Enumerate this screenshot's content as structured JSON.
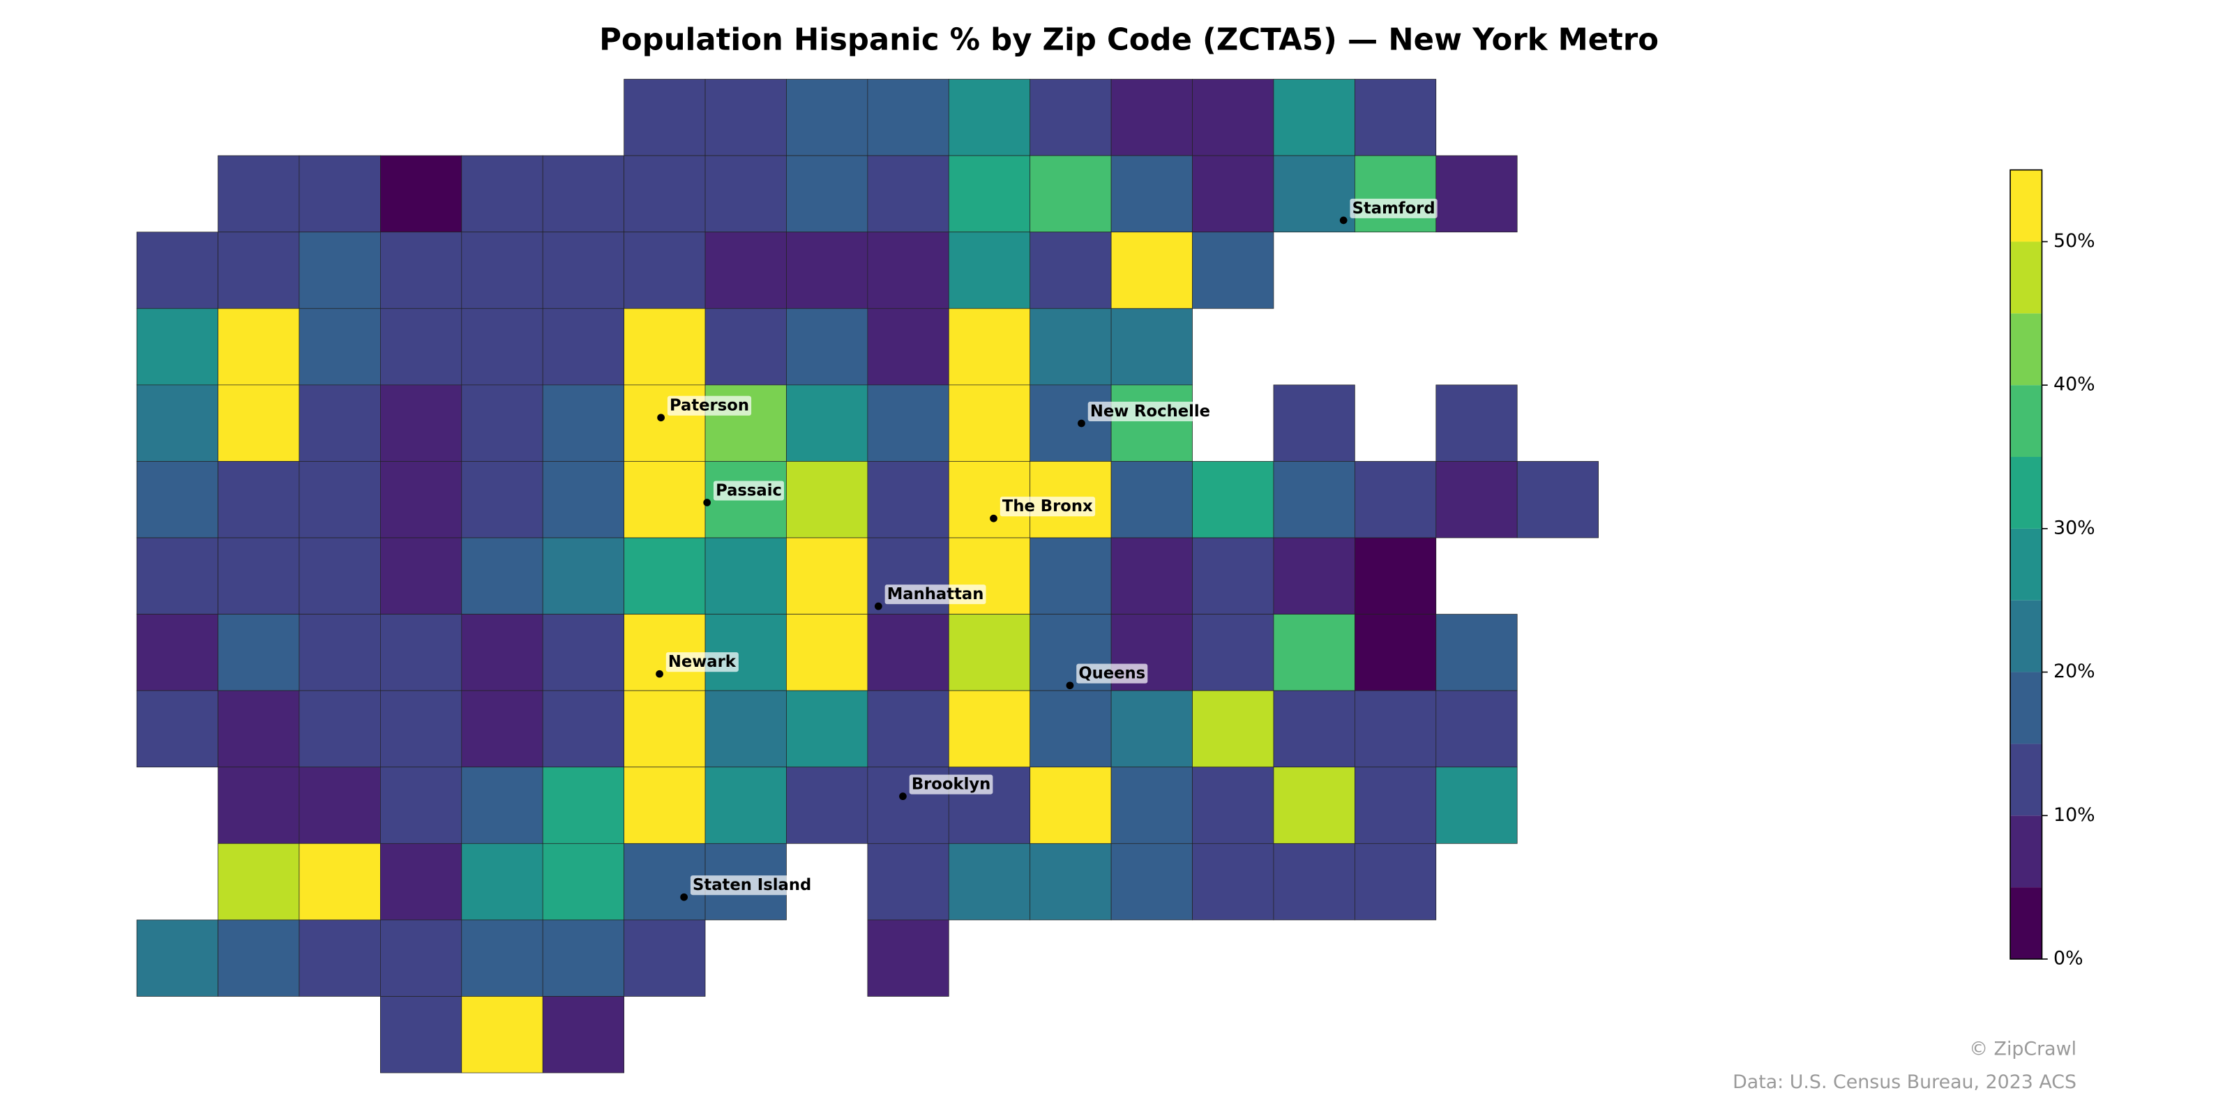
{
  "chart_data": {
    "type": "choropleth",
    "title": "Population Hispanic % by Zip Code (ZCTA5) — New York Metro",
    "clim": [
      0,
      55
    ],
    "colors": [
      "#440154",
      "#482475",
      "#414487",
      "#355f8d",
      "#2a788e",
      "#21918c",
      "#22a884",
      "#44bf70",
      "#7ad151",
      "#bddf26",
      "#fde725"
    ],
    "cbar_ticks": [
      {
        "value": 0,
        "label": "0%"
      },
      {
        "value": 10,
        "label": "10%"
      },
      {
        "value": 20,
        "label": "20%"
      },
      {
        "value": 30,
        "label": "30%"
      },
      {
        "value": 40,
        "label": "40%"
      },
      {
        "value": 50,
        "label": "50%"
      }
    ],
    "cells": [
      [
        null,
        null,
        null,
        null,
        null,
        null,
        12,
        12,
        15,
        18,
        28,
        12,
        8,
        8,
        28,
        10,
        null,
        null
      ],
      [
        null,
        12,
        10,
        3,
        12,
        10,
        10,
        10,
        18,
        12,
        30,
        35,
        15,
        8,
        20,
        35,
        5,
        null
      ],
      [
        10,
        12,
        18,
        10,
        12,
        12,
        10,
        8,
        8,
        5,
        25,
        12,
        50,
        15,
        null,
        null,
        null,
        null
      ],
      [
        25,
        55,
        18,
        12,
        12,
        12,
        50,
        10,
        15,
        8,
        55,
        20,
        20,
        null,
        null,
        null,
        null,
        null
      ],
      [
        22,
        55,
        10,
        5,
        12,
        15,
        55,
        40,
        25,
        18,
        55,
        15,
        38,
        null,
        12,
        null,
        10,
        null
      ],
      [
        18,
        12,
        10,
        8,
        10,
        15,
        55,
        35,
        45,
        12,
        55,
        50,
        15,
        30,
        15,
        12,
        5,
        12
      ],
      [
        10,
        12,
        12,
        8,
        15,
        20,
        30,
        25,
        55,
        10,
        55,
        15,
        8,
        10,
        5,
        3,
        null,
        null
      ],
      [
        8,
        15,
        10,
        12,
        8,
        10,
        55,
        25,
        55,
        8,
        45,
        15,
        8,
        12,
        35,
        3,
        18,
        null
      ],
      [
        10,
        8,
        10,
        10,
        8,
        12,
        50,
        22,
        25,
        10,
        50,
        15,
        22,
        45,
        12,
        10,
        12,
        null
      ],
      [
        null,
        8,
        8,
        12,
        15,
        30,
        55,
        28,
        10,
        12,
        10,
        55,
        15,
        12,
        45,
        10,
        25,
        null
      ],
      [
        null,
        48,
        55,
        5,
        25,
        30,
        18,
        15,
        null,
        10,
        22,
        22,
        15,
        10,
        10,
        12,
        null,
        null
      ],
      [
        20,
        15,
        12,
        12,
        18,
        15,
        10,
        null,
        null,
        5,
        null,
        null,
        null,
        null,
        null,
        null,
        null,
        null
      ],
      [
        null,
        null,
        null,
        12,
        55,
        8,
        null,
        null,
        null,
        null,
        null,
        null,
        null,
        null,
        null,
        null,
        null,
        null
      ]
    ],
    "cities": [
      "Stamford",
      "Paterson",
      "New Rochelle",
      "Passaic",
      "The Bronx",
      "Manhattan",
      "Newark",
      "Queens",
      "Brooklyn",
      "Staten Island"
    ],
    "footer": [
      "© ZipCrawl",
      "Data: U.S. Census Bureau, 2023 ACS"
    ]
  }
}
